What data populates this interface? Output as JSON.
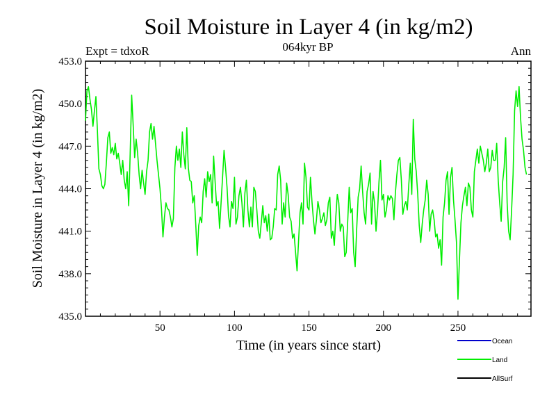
{
  "chart_data": {
    "type": "line",
    "title": "Soil Moisture in Layer 4 (in kg/m2)",
    "subtitle": "064kyr BP",
    "left_note": "Expt = tdxoR",
    "right_note": "Ann",
    "xlabel": "Time (in years since start)",
    "ylabel": "Soil Moisture in Layer 4 (in kg/m2)",
    "xlim": [
      0,
      299
    ],
    "ylim": [
      435.0,
      453.0
    ],
    "x_ticks": [
      50,
      100,
      150,
      200,
      250
    ],
    "x_tick_labels": [
      "50",
      "100",
      "150",
      "200",
      "250"
    ],
    "y_ticks": [
      435.0,
      438.0,
      441.0,
      444.0,
      447.0,
      450.0,
      453.0
    ],
    "y_tick_labels": [
      "435.0",
      "438.0",
      "441.0",
      "444.0",
      "447.0",
      "450.0",
      "453.0"
    ],
    "grid": false,
    "legend_position": "bottom-right",
    "legend": [
      {
        "name": "Ocean",
        "color": "#0000cc"
      },
      {
        "name": "Land",
        "color": "#00ee00"
      },
      {
        "name": "AllSurf",
        "color": "#000000"
      }
    ],
    "series": [
      {
        "name": "Land",
        "color": "#00ee00",
        "x_start": 0,
        "x_step": 1,
        "values": [
          448.8,
          450.9,
          451.2,
          450.3,
          449.6,
          448.4,
          449.5,
          450.5,
          448.1,
          445.4,
          445.0,
          444.2,
          444.0,
          444.3,
          445.8,
          447.6,
          448.0,
          446.5,
          446.9,
          446.4,
          447.2,
          446.1,
          446.5,
          445.8,
          445.0,
          446.0,
          444.6,
          444.0,
          445.2,
          442.8,
          446.5,
          450.6,
          448.5,
          446.2,
          447.5,
          446.5,
          445.0,
          444.0,
          445.3,
          444.4,
          443.6,
          445.2,
          446.0,
          448.0,
          448.6,
          447.5,
          448.4,
          447.2,
          446.0,
          445.0,
          444.0,
          442.6,
          440.6,
          442.0,
          443.0,
          442.6,
          442.5,
          442.0,
          441.3,
          441.9,
          445.5,
          447.0,
          446.0,
          446.8,
          445.5,
          448.0,
          446.4,
          445.4,
          448.3,
          445.5,
          444.6,
          444.5,
          443.0,
          443.5,
          441.5,
          439.3,
          441.4,
          442.0,
          441.6,
          443.8,
          444.7,
          443.4,
          445.2,
          444.5,
          445.0,
          443.0,
          446.3,
          444.5,
          442.8,
          443.1,
          441.2,
          443.0,
          444.8,
          446.7,
          445.5,
          444.1,
          442.1,
          441.3,
          443.1,
          442.6,
          444.8,
          441.5,
          442.0,
          443.5,
          444.1,
          443.0,
          441.3,
          443.7,
          444.6,
          442.5,
          441.3,
          442.7,
          441.3,
          444.1,
          443.8,
          442.5,
          441.0,
          440.5,
          441.6,
          442.8,
          441.6,
          442.1,
          441.0,
          442.2,
          440.4,
          440.5,
          441.3,
          442.6,
          442.5,
          445.0,
          445.6,
          444.6,
          441.5,
          443.0,
          442.0,
          444.4,
          443.6,
          442.0,
          441.7,
          440.5,
          440.8,
          439.5,
          438.2,
          440.3,
          442.3,
          443.0,
          441.5,
          445.8,
          444.8,
          442.7,
          442.5,
          444.8,
          443.1,
          441.8,
          440.8,
          441.8,
          443.1,
          442.5,
          441.6,
          441.9,
          442.3,
          441.4,
          441.8,
          443.0,
          443.4,
          440.5,
          441.0,
          440.0,
          442.0,
          443.6,
          443.0,
          441.0,
          441.5,
          441.3,
          439.2,
          439.5,
          441.7,
          444.1,
          442.3,
          442.6,
          439.5,
          438.5,
          441.1,
          443.4,
          444.0,
          445.6,
          443.8,
          442.3,
          441.5,
          443.8,
          444.3,
          445.1,
          441.5,
          443.8,
          443.0,
          441.0,
          442.4,
          444.5,
          446.0,
          443.2,
          443.6,
          442.0,
          442.5,
          443.5,
          443.2,
          443.5,
          443.3,
          441.8,
          443.7,
          445.0,
          446.0,
          446.2,
          444.6,
          442.2,
          442.8,
          443.1,
          442.5,
          444.3,
          445.8,
          443.6,
          448.9,
          446.1,
          445.2,
          443.6,
          441.4,
          440.2,
          441.5,
          442.5,
          443.2,
          444.6,
          443.6,
          441.0,
          442.2,
          442.5,
          441.8,
          440.6,
          440.8,
          439.8,
          440.4,
          438.6,
          442.0,
          443.0,
          444.6,
          445.2,
          442.2,
          444.8,
          445.5,
          443.2,
          441.8,
          440.2,
          436.2,
          439.0,
          441.6,
          442.8,
          443.5,
          444.1,
          442.8,
          444.4,
          444.1,
          442.5,
          442.0,
          445.2,
          446.0,
          446.8,
          445.8,
          447.0,
          446.5,
          446.0,
          445.2,
          445.8,
          446.8,
          445.2,
          445.5,
          446.7,
          446.0,
          446.0,
          447.2,
          444.6,
          443.0,
          441.7,
          444.5,
          445.5,
          447.6,
          443.0,
          441.0,
          440.4,
          442.5,
          445.0,
          449.5,
          450.9,
          449.8,
          451.2,
          449.0,
          447.5,
          446.7,
          445.5,
          445.0
        ]
      },
      {
        "name": "Ocean",
        "color": "#0000cc",
        "values": []
      },
      {
        "name": "AllSurf",
        "color": "#000000",
        "values": []
      }
    ]
  }
}
